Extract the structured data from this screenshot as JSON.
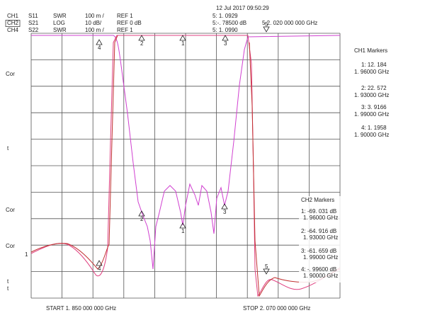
{
  "header": {
    "timestamp": "12 Jul 2017  09:50:29",
    "channels": [
      {
        "ch": "CH1",
        "param": "S11",
        "format": "SWR",
        "scale": "100 m /",
        "ref": "REF 1",
        "marker": "5: 1. 0929"
      },
      {
        "ch": "CH2",
        "param": "S21",
        "format": "LOG",
        "scale": "10 dB/",
        "ref": "REF 0 dB",
        "marker": "5:-. 78500  dB"
      },
      {
        "ch": "CH4",
        "param": "S22",
        "format": "SWR",
        "scale": "100 m /",
        "ref": "REF 1",
        "marker": "5: 1. 0990"
      }
    ],
    "marker5_freq": "5  2. 020  000  000  GHz"
  },
  "left_labels": [
    "Cor",
    "t",
    "Cor",
    "Cor",
    "1",
    "t",
    "t"
  ],
  "ch1_markers": {
    "title": "CH1  Markers",
    "items": [
      {
        "value": "1: 12. 184",
        "freq": "1. 96000  GHz"
      },
      {
        "value": "2: 22. 572",
        "freq": "1. 93000  GHz"
      },
      {
        "value": "3: 3. 9166",
        "freq": "1. 99000  GHz"
      },
      {
        "value": "4: 1. 1958",
        "freq": "1. 90000  GHz"
      }
    ]
  },
  "ch2_markers": {
    "title": "CH2  Markers",
    "items": [
      {
        "value": "1: -69. 031  dB",
        "freq": "1. 96000  GHz"
      },
      {
        "value": "2: -64. 916  dB",
        "freq": "1. 93000  GHz"
      },
      {
        "value": "3: -61. 659  dB",
        "freq": "1. 99000  GHz"
      },
      {
        "value": "4: -. 99600  dB",
        "freq": "1. 90000  GHz"
      }
    ]
  },
  "trace_markers": [
    "1",
    "2",
    "3",
    "4",
    "5"
  ],
  "footer": {
    "start": "START   1. 850  000  000  GHz",
    "stop": "STOP   2. 070  000  000  GHz"
  }
}
